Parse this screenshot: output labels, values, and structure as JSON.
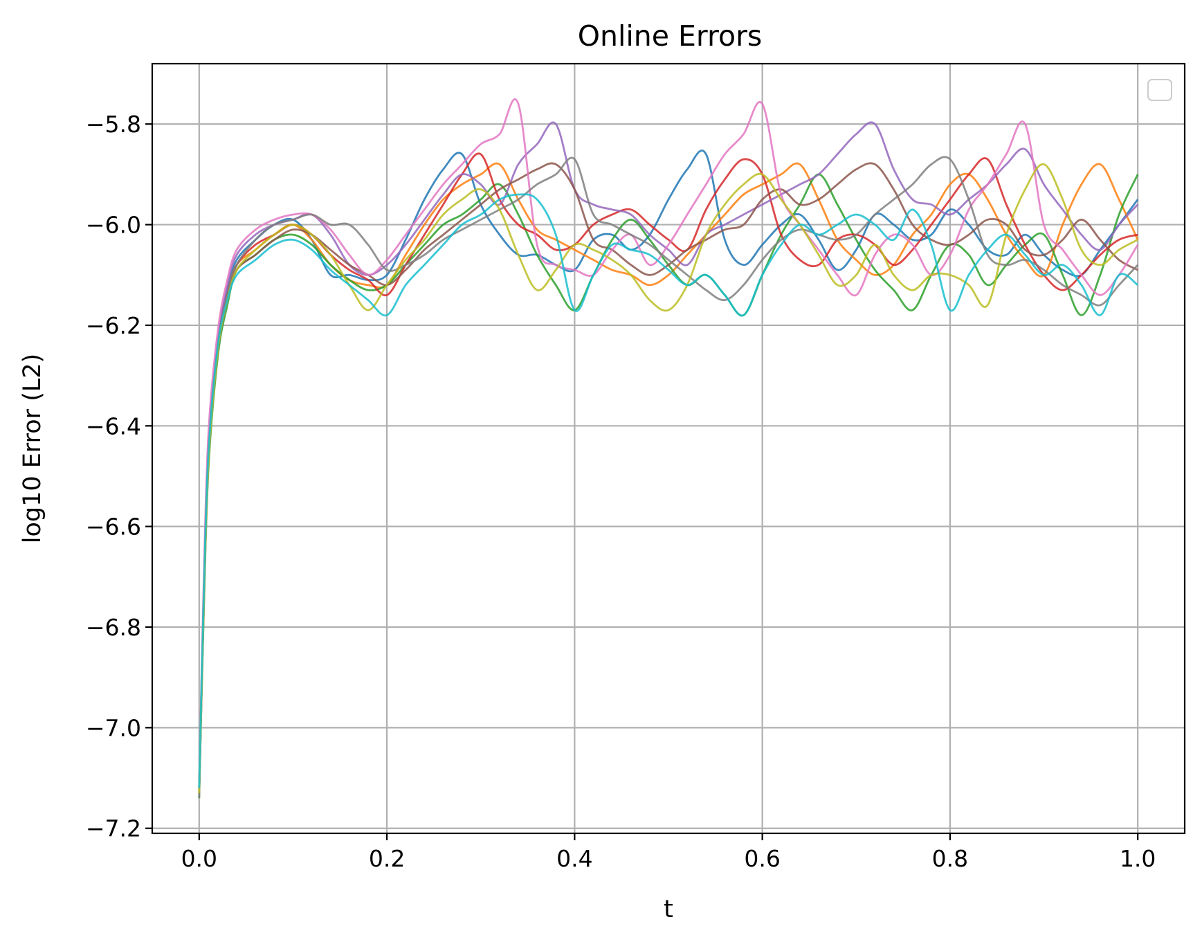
{
  "chart_data": {
    "type": "line",
    "title": "Online Errors",
    "xlabel": "t",
    "ylabel": "log10 Error (L2)",
    "xlim": [
      -0.05,
      1.05
    ],
    "ylim": [
      -7.21,
      -5.68
    ],
    "xticks": [
      0.0,
      0.2,
      0.4,
      0.6,
      0.8,
      1.0
    ],
    "xtick_labels": [
      "0.0",
      "0.2",
      "0.4",
      "0.6",
      "0.8",
      "1.0"
    ],
    "yticks": [
      -7.2,
      -7.0,
      -6.8,
      -6.6,
      -6.4,
      -6.2,
      -6.0,
      -5.8
    ],
    "ytick_labels": [
      "−7.2",
      "−7.0",
      "−6.8",
      "−6.6",
      "−6.4",
      "−6.2",
      "−6.0",
      "−5.8"
    ],
    "grid": true,
    "legend": {
      "placement": "upper right",
      "entries": []
    },
    "x": [
      0.0,
      0.005,
      0.01,
      0.02,
      0.03,
      0.04,
      0.06,
      0.08,
      0.1,
      0.12,
      0.14,
      0.16,
      0.18,
      0.2,
      0.22,
      0.24,
      0.26,
      0.28,
      0.3,
      0.32,
      0.34,
      0.36,
      0.38,
      0.4,
      0.42,
      0.44,
      0.46,
      0.48,
      0.5,
      0.52,
      0.54,
      0.56,
      0.58,
      0.6,
      0.62,
      0.64,
      0.66,
      0.68,
      0.7,
      0.72,
      0.74,
      0.76,
      0.78,
      0.8,
      0.82,
      0.84,
      0.86,
      0.88,
      0.9,
      0.92,
      0.94,
      0.96,
      0.98,
      1.0
    ],
    "series": [
      {
        "color": "#1f77b4",
        "values": [
          -7.12,
          -6.72,
          -6.44,
          -6.23,
          -6.13,
          -6.07,
          -6.03,
          -6.0,
          -5.99,
          -6.03,
          -6.1,
          -6.1,
          -6.11,
          -6.1,
          -6.03,
          -5.95,
          -5.89,
          -5.86,
          -5.96,
          -6.02,
          -6.06,
          -6.06,
          -6.08,
          -6.09,
          -6.03,
          -6.02,
          -6.05,
          -6.02,
          -5.95,
          -5.89,
          -5.86,
          -6.03,
          -6.08,
          -6.04,
          -6.0,
          -5.98,
          -6.03,
          -6.09,
          -6.05,
          -5.98,
          -6.0,
          -6.03,
          -6.02,
          -5.97,
          -6.0,
          -6.05,
          -6.06,
          -6.02,
          -6.06,
          -6.09,
          -6.1,
          -6.05,
          -6.0,
          -5.95
        ]
      },
      {
        "color": "#ff7f0e",
        "values": [
          -7.13,
          -6.74,
          -6.46,
          -6.24,
          -6.14,
          -6.08,
          -6.05,
          -6.02,
          -6.0,
          -6.03,
          -6.08,
          -6.11,
          -6.12,
          -6.12,
          -6.06,
          -6.0,
          -5.95,
          -5.92,
          -5.9,
          -5.88,
          -5.95,
          -6.01,
          -6.03,
          -6.05,
          -6.07,
          -6.09,
          -6.1,
          -6.12,
          -6.1,
          -6.06,
          -6.02,
          -5.98,
          -5.94,
          -5.92,
          -5.9,
          -5.88,
          -5.95,
          -6.03,
          -6.07,
          -6.1,
          -6.08,
          -6.02,
          -5.98,
          -5.92,
          -5.9,
          -5.95,
          -6.02,
          -6.07,
          -6.1,
          -6.0,
          -5.92,
          -5.88,
          -5.95,
          -6.03
        ]
      },
      {
        "color": "#2ca02c",
        "values": [
          -7.14,
          -6.76,
          -6.48,
          -6.26,
          -6.16,
          -6.09,
          -6.06,
          -6.03,
          -6.02,
          -6.04,
          -6.08,
          -6.11,
          -6.13,
          -6.12,
          -6.08,
          -6.04,
          -6.0,
          -5.98,
          -5.95,
          -5.92,
          -5.98,
          -6.06,
          -6.12,
          -6.17,
          -6.1,
          -6.03,
          -5.99,
          -6.03,
          -6.08,
          -6.12,
          -6.1,
          -6.14,
          -6.18,
          -6.1,
          -6.02,
          -5.96,
          -5.9,
          -5.96,
          -6.03,
          -6.09,
          -6.13,
          -6.17,
          -6.1,
          -6.04,
          -6.06,
          -6.12,
          -6.08,
          -6.04,
          -6.02,
          -6.1,
          -6.18,
          -6.1,
          -5.98,
          -5.9
        ]
      },
      {
        "color": "#d62728",
        "values": [
          -7.12,
          -6.73,
          -6.45,
          -6.24,
          -6.14,
          -6.08,
          -6.04,
          -6.02,
          -6.0,
          -6.02,
          -6.06,
          -6.09,
          -6.11,
          -6.14,
          -6.08,
          -6.02,
          -5.96,
          -5.9,
          -5.86,
          -5.95,
          -6.0,
          -6.02,
          -6.05,
          -6.04,
          -6.0,
          -5.98,
          -5.97,
          -6.0,
          -6.03,
          -6.05,
          -5.97,
          -5.91,
          -5.87,
          -5.9,
          -6.02,
          -6.07,
          -6.08,
          -6.03,
          -6.02,
          -6.04,
          -6.08,
          -6.05,
          -6.0,
          -5.95,
          -5.9,
          -5.87,
          -5.96,
          -6.04,
          -6.1,
          -6.13,
          -6.1,
          -6.06,
          -6.03,
          -6.02
        ]
      },
      {
        "color": "#9467bd",
        "values": [
          -7.13,
          -6.74,
          -6.45,
          -6.23,
          -6.12,
          -6.06,
          -6.02,
          -6.0,
          -5.99,
          -5.98,
          -6.02,
          -6.08,
          -6.1,
          -6.08,
          -6.04,
          -5.99,
          -5.94,
          -5.9,
          -5.92,
          -5.96,
          -5.88,
          -5.84,
          -5.8,
          -5.93,
          -5.96,
          -5.97,
          -5.98,
          -6.02,
          -6.05,
          -6.08,
          -6.02,
          -6.0,
          -5.98,
          -5.96,
          -5.94,
          -5.92,
          -5.9,
          -5.86,
          -5.82,
          -5.8,
          -5.89,
          -5.95,
          -5.96,
          -5.98,
          -5.95,
          -5.92,
          -5.88,
          -5.85,
          -5.92,
          -5.97,
          -6.02,
          -6.05,
          -6.0,
          -5.96
        ]
      },
      {
        "color": "#8c564b",
        "values": [
          -7.13,
          -6.74,
          -6.46,
          -6.25,
          -6.15,
          -6.09,
          -6.06,
          -6.03,
          -6.01,
          -6.02,
          -6.05,
          -6.08,
          -6.1,
          -6.12,
          -6.09,
          -6.05,
          -6.02,
          -5.99,
          -5.96,
          -5.93,
          -5.91,
          -5.89,
          -5.88,
          -5.93,
          -6.03,
          -6.05,
          -6.08,
          -6.1,
          -6.08,
          -6.05,
          -6.03,
          -6.01,
          -6.0,
          -5.95,
          -5.93,
          -5.96,
          -5.95,
          -5.92,
          -5.89,
          -5.88,
          -5.93,
          -6.0,
          -6.03,
          -6.04,
          -6.02,
          -5.99,
          -6.0,
          -6.05,
          -6.06,
          -6.03,
          -5.99,
          -6.03,
          -6.07,
          -6.09
        ]
      },
      {
        "color": "#e377c2",
        "values": [
          -7.12,
          -6.7,
          -6.41,
          -6.21,
          -6.11,
          -6.05,
          -6.01,
          -5.99,
          -5.98,
          -5.98,
          -6.01,
          -6.06,
          -6.1,
          -6.07,
          -6.02,
          -5.97,
          -5.92,
          -5.88,
          -5.84,
          -5.82,
          -5.76,
          -6.04,
          -6.08,
          -6.09,
          -6.1,
          -6.05,
          -6.02,
          -6.08,
          -6.04,
          -5.98,
          -5.92,
          -5.86,
          -5.82,
          -5.76,
          -5.94,
          -6.0,
          -6.05,
          -6.1,
          -6.14,
          -6.06,
          -6.02,
          -6.04,
          -6.1,
          -6.06,
          -5.97,
          -5.92,
          -5.86,
          -5.8,
          -6.0,
          -6.05,
          -6.1,
          -6.14,
          -6.1,
          -6.04
        ]
      },
      {
        "color": "#7f7f7f",
        "values": [
          -7.14,
          -6.76,
          -6.47,
          -6.24,
          -6.14,
          -6.08,
          -6.03,
          -6.0,
          -5.99,
          -5.98,
          -6.0,
          -6.0,
          -6.04,
          -6.09,
          -6.08,
          -6.06,
          -6.03,
          -6.01,
          -5.99,
          -5.97,
          -5.95,
          -5.92,
          -5.9,
          -5.87,
          -5.98,
          -6.0,
          -6.02,
          -6.04,
          -6.07,
          -6.1,
          -6.13,
          -6.15,
          -6.12,
          -6.07,
          -6.03,
          -6.01,
          -6.02,
          -6.03,
          -6.02,
          -5.98,
          -5.95,
          -5.92,
          -5.88,
          -5.87,
          -5.95,
          -6.06,
          -6.08,
          -6.07,
          -6.09,
          -6.12,
          -6.14,
          -6.16,
          -6.12,
          -6.08
        ]
      },
      {
        "color": "#bcbd22",
        "values": [
          -7.13,
          -6.75,
          -6.47,
          -6.25,
          -6.15,
          -6.09,
          -6.05,
          -6.02,
          -6.0,
          -6.02,
          -6.06,
          -6.12,
          -6.17,
          -6.12,
          -6.07,
          -6.03,
          -5.98,
          -5.95,
          -5.93,
          -5.97,
          -6.06,
          -6.13,
          -6.09,
          -6.04,
          -6.05,
          -6.07,
          -6.1,
          -6.15,
          -6.17,
          -6.12,
          -6.02,
          -5.96,
          -5.92,
          -5.9,
          -5.95,
          -6.0,
          -6.06,
          -6.12,
          -6.1,
          -6.04,
          -6.1,
          -6.13,
          -6.1,
          -6.1,
          -6.12,
          -6.16,
          -6.02,
          -5.93,
          -5.88,
          -5.95,
          -6.05,
          -6.08,
          -6.05,
          -6.03
        ]
      },
      {
        "color": "#17becf",
        "values": [
          -7.12,
          -6.73,
          -6.45,
          -6.24,
          -6.15,
          -6.1,
          -6.07,
          -6.04,
          -6.03,
          -6.05,
          -6.09,
          -6.12,
          -6.15,
          -6.18,
          -6.12,
          -6.08,
          -6.04,
          -6.0,
          -5.98,
          -5.95,
          -5.94,
          -5.95,
          -6.02,
          -6.17,
          -6.1,
          -6.04,
          -6.05,
          -6.06,
          -6.09,
          -6.12,
          -6.1,
          -6.14,
          -6.18,
          -6.1,
          -6.04,
          -6.0,
          -6.02,
          -6.0,
          -5.98,
          -6.0,
          -6.03,
          -5.97,
          -6.04,
          -6.17,
          -6.1,
          -6.05,
          -6.02,
          -6.06,
          -6.1,
          -6.08,
          -6.12,
          -6.18,
          -6.1,
          -6.12
        ]
      }
    ]
  }
}
